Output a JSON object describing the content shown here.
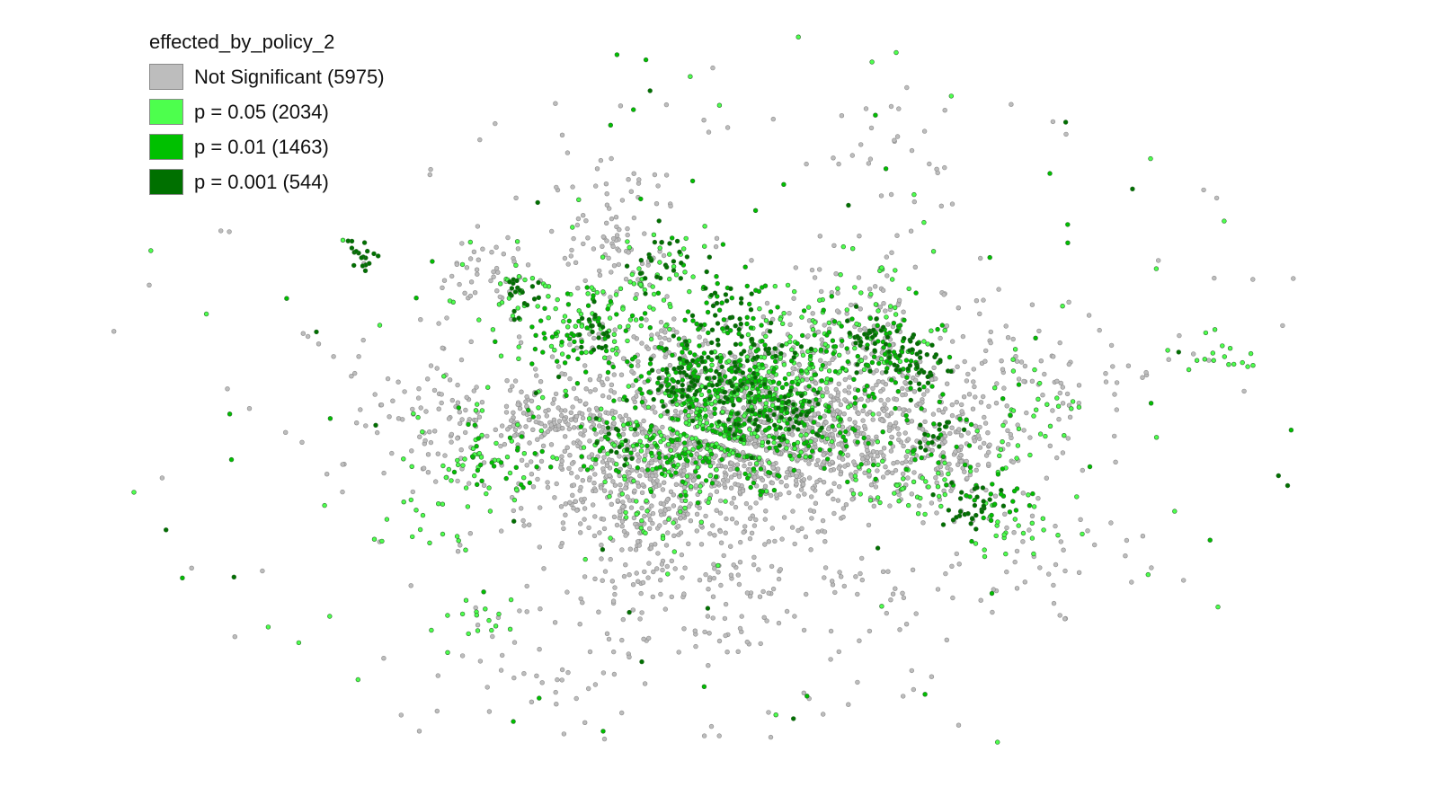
{
  "legend": {
    "title": "effected_by_policy_2",
    "items": [
      {
        "label": "Not Significant (5975)",
        "color": "#bdbdbd",
        "count": 5975
      },
      {
        "label": "p = 0.05 (2034)",
        "color": "#4dff4d",
        "count": 2034
      },
      {
        "label": "p = 0.01 (1463)",
        "color": "#00c000",
        "count": 1463
      },
      {
        "label": "p = 0.001 (544)",
        "color": "#007000",
        "count": 544
      }
    ]
  },
  "colors": {
    "not_significant_fill": "#bdbdbd",
    "not_significant_stroke": "#8c8c8c",
    "p05_fill": "#4dff4d",
    "p01_fill": "#00c000",
    "p001_fill": "#007000",
    "point_stroke": "#2e6b2e"
  }
}
